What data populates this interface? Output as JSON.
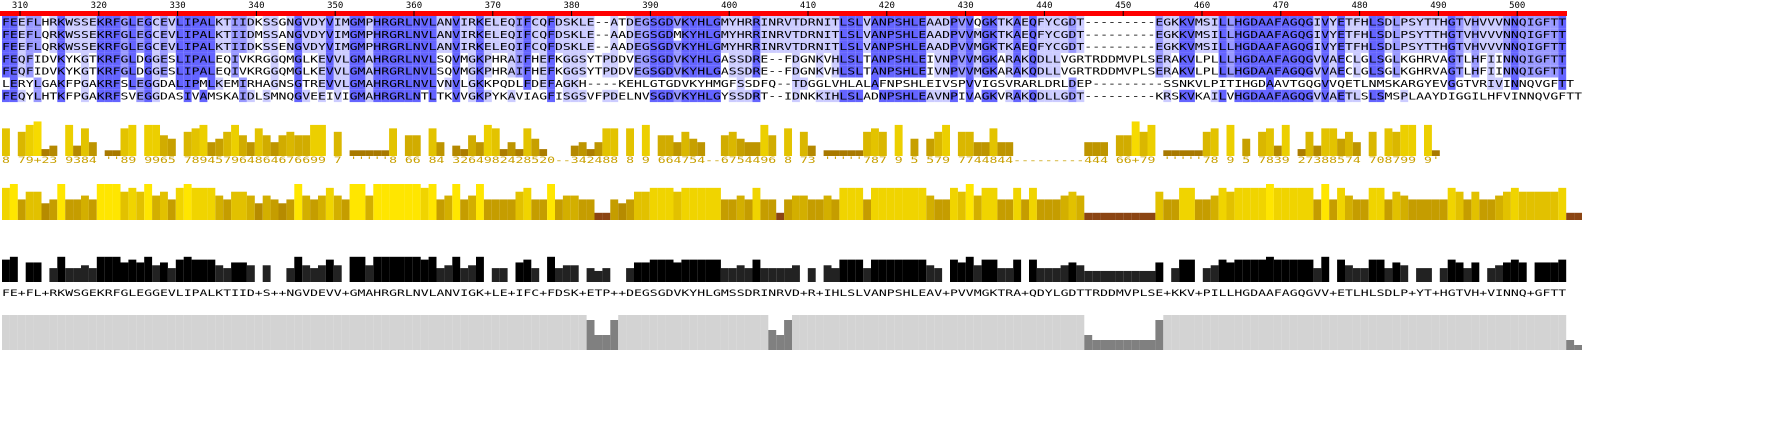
{
  "alignment": {
    "ruler": [
      310,
      320,
      330,
      340,
      350,
      360,
      370,
      380,
      390,
      400,
      410,
      420,
      430,
      440,
      450,
      460,
      470,
      480,
      490,
      500
    ],
    "sequences": [
      "FEEFLHRKWSSEKRFGLEGCEVLIPALKTIIDKSSGNGVDYVIMGMPHRGRLNVLANVIRKELEQIFCQFDSKLE--ATDEGSGDVKYHLGMYHRRINRVTDRNITLSLVANPSHLEAADPVVQGKTKAEQFYCGDT---------EGKKVMSILLHGDAAFAGQGIVYETFHLSDLPSYTTHGTVHVVVNNQIGFTT",
      "FEEFLQRKWSSEKRFGLEGCEVLIPALKTIIDMSSANGVDYVIMGMPHRGRLNVLANVIRKELEQIFCQFDSKLE--AADEGSGDMKYHLGMYHRRINRVTDRNITLSLVANPSHLEAADPVVMGKTKAEQFYCGDT---------EGKKVMSILLHGDAAFAGQGIVYETFHLSDLPSYTTHGTVHVVVNNQIGFTT",
      "FEEFLQRKWSSEKRFGLEGCEVLIPALKTIIDKSSENGVDYVIMGMPHRGRLNVLANVIRKELEQIFCQFDSKLE--AADEGSGDVKYHLGMYHRRINRVTDRNITLSLVANPSHLEAADPVVMGKTKAEQFYCGDT---------EGKKVMSILLHGDAAFAGQGIVYETFHLSDLPSYTTHGTVHVVVNNQIGFTT",
      "FEQFIDVKYKGTKRFGLDGGESLIPALEQIVKRGGQMGLKEVVLGMAHRGRLNVLSQVMGKPHRAIFHEFKGGSYTPDDVEGSGDVKYHLGASSDRE--FDGNKVHLSLTANPSHLEIVNPVVMGKARAKQDLLVGRTRDDMVPLSERAKVLPLLLHGDAAFAGQGVVAECLGLSGLKGHRVAGTLHFIINNQIGFTT",
      "FEQFIDVKYKGTKRFGLDGGESLIPALEQIVKRGGQMGLKEVVLGMAHRGRLNVLSQVMGKPHRAIFHEFKGGSYTPDDVEGSGDVKYHLGASSDRE--FDGNKVHLSLTANPSHLEIVNPVVMGKARAKQDLLVGRTRDDMVPLSERAKVLPLLLHGDAAFAGQGVVAECLGLSGLKGHRVAGTLHFIINNQIGFTT",
      "LERYLGAKFPGAKRFSLEGGDALIPMLKEMIRHAGNSGTREVVLGMAHRGRLNVLVNVLGKKPQDLFDEFAGKH----KEHLGTGDVKYHMGFSSDFQ--TDGGLVHLALAFNPSHLEIVSPVVIGSVRARLDRLDEP---------SSNKVLPITIHGDAAVTGQGVVQETLNMSKARGYEVGGTVRIVINNQVGFTT",
      "FEQYLHTKFPGAKRFSVEGGDASIVAMSKAIDLSMNQGVEEIVIGMAHRGRLNTLTKVVGKPYKAVIAGFISGSVFPDELNVSGDVKYHLGYSSDRT--IDNKKIHLSLADNPSHLEAVNPIVAGKVRAKQDLLGDT---------KRSKVKAILVHGDAAFAGQGVVAETLSLSMSPLAAYDIGGILHFVINNQVGFTT"
    ],
    "conservation": "8 79+23 9384 ''89 9965 789457964864676699 7 '''''8 66 84 3264982428520--342488 8 9 664754--6754496 8 73 '''''787 9 5 579 7744844---------444 66+79 '''''78 9 5 7839 27388574 708799 9'",
    "consensus": "FE+FL+RKWSGEKRFGLEGGEVLIPALKTIID+S++NGVDEVV+GMAHRGRLNVLANVIGK+LE+IFC+FDSK+ETP++DEGSGDVKYHLGMSSDRINRVD+R+IHLSLVANPSHLEAV+PVVMGKTRA+QDYLGDTTRDDMVPLSE+KKV+PILLHGDAAFAGQGVV+ETLHLSDLP+YT+HGTVH+VINNQ+GFTT"
  }
}
